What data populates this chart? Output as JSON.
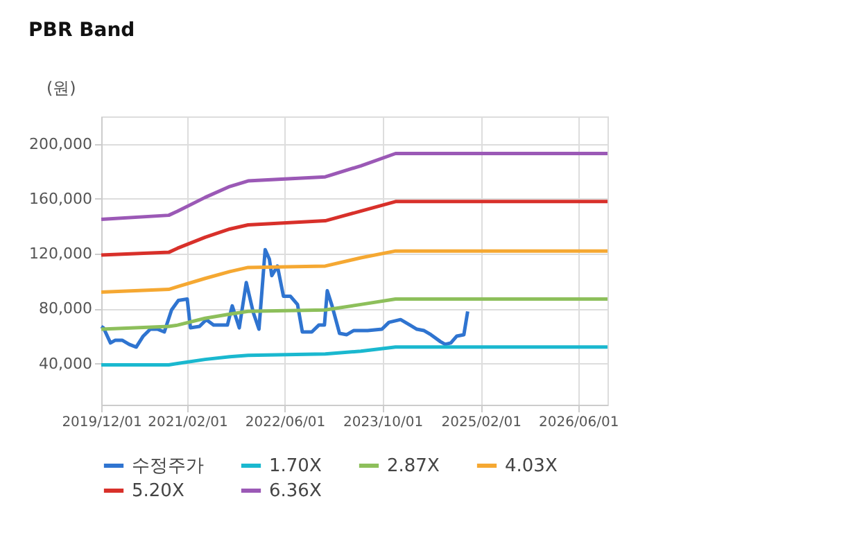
{
  "chart_data": {
    "type": "line",
    "title": "PBR Band",
    "ylabel": "(원)",
    "xlim": [
      "2019-12-01",
      "2026-10-25"
    ],
    "xticks": [
      {
        "value": "2019-12-01",
        "label": "2019/12/01"
      },
      {
        "value": "2021-02-01",
        "label": "2021/02/01"
      },
      {
        "value": "2022-06-01",
        "label": "2022/06/01"
      },
      {
        "value": "2023-10-01",
        "label": "2023/10/01"
      },
      {
        "value": "2025-02-01",
        "label": "2025/02/01"
      },
      {
        "value": "2026-06-01",
        "label": "2026/06/01"
      }
    ],
    "ylim": [
      10000,
      220000
    ],
    "yticks": [
      {
        "value": 40000,
        "label": "40,000"
      },
      {
        "value": 80000,
        "label": "80,000"
      },
      {
        "value": 120000,
        "label": "120,000"
      },
      {
        "value": 160000,
        "label": "160,000"
      },
      {
        "value": 200000,
        "label": "200,000"
      }
    ],
    "grid": true,
    "legend": "bottom",
    "marker": "none",
    "line_style": "solid",
    "series": [
      {
        "name": "수정주가",
        "color": "#2f74d0",
        "x": [
          "2019-12-01",
          "2019-12-12",
          "2020-01-16",
          "2020-02-09",
          "2020-03-14",
          "2020-04-18",
          "2020-05-23",
          "2020-06-27",
          "2020-08-01",
          "2020-09-06",
          "2020-10-10",
          "2020-11-15",
          "2020-12-19",
          "2021-02-01",
          "2021-02-17",
          "2021-04-03",
          "2021-05-07",
          "2021-06-12",
          "2021-07-16",
          "2021-08-20",
          "2021-09-13",
          "2021-10-18",
          "2021-11-22",
          "2021-12-27",
          "2022-01-24",
          "2022-02-24",
          "2022-03-17",
          "2022-03-29",
          "2022-04-26",
          "2022-05-26",
          "2022-06-30",
          "2022-08-04",
          "2022-08-28",
          "2022-10-14",
          "2022-11-18",
          "2022-12-16",
          "2022-12-30",
          "2023-01-23",
          "2023-03-01",
          "2023-04-06",
          "2023-05-10",
          "2023-07-19",
          "2023-09-28",
          "2023-11-02",
          "2023-12-30",
          "2024-02-15",
          "2024-03-20",
          "2024-04-25",
          "2024-05-29",
          "2024-07-15",
          "2024-08-08",
          "2024-09-05",
          "2024-10-05",
          "2024-11-09",
          "2024-11-28"
        ],
        "values": [
          67000,
          66000,
          55000,
          57000,
          57000,
          54000,
          52000,
          60000,
          65000,
          65000,
          63000,
          79000,
          86000,
          87000,
          66000,
          67000,
          72000,
          68000,
          68000,
          68000,
          82000,
          66000,
          99000,
          77000,
          65000,
          123000,
          116000,
          104000,
          111000,
          89000,
          89000,
          83000,
          63000,
          63000,
          68000,
          68000,
          93000,
          82000,
          62000,
          61000,
          64000,
          64000,
          65000,
          70000,
          72000,
          68000,
          65000,
          64000,
          61000,
          56000,
          54000,
          55000,
          60000,
          61000,
          78000
        ]
      },
      {
        "name": "1.70X",
        "color": "#1ab8cf",
        "x": [
          "2019-12-01",
          "2020-11-01",
          "2020-12-15",
          "2021-05-01",
          "2021-09-01",
          "2021-12-01",
          "2022-12-20",
          "2023-06-15",
          "2023-12-05",
          "2026-10-25"
        ],
        "values": [
          39000,
          39000,
          40000,
          43000,
          45000,
          46000,
          47000,
          49000,
          52000,
          52000
        ]
      },
      {
        "name": "2.87X",
        "color": "#8dbf5b",
        "x": [
          "2019-12-01",
          "2020-11-01",
          "2020-12-15",
          "2021-05-01",
          "2021-09-01",
          "2021-12-01",
          "2022-12-20",
          "2023-06-15",
          "2023-12-05",
          "2026-10-25"
        ],
        "values": [
          65000,
          67000,
          68000,
          73000,
          76000,
          78000,
          79000,
          83000,
          87000,
          87000
        ]
      },
      {
        "name": "4.03X",
        "color": "#f5a832",
        "x": [
          "2019-12-01",
          "2020-11-01",
          "2020-12-15",
          "2021-05-01",
          "2021-09-01",
          "2021-12-01",
          "2022-12-20",
          "2023-06-15",
          "2023-12-05",
          "2026-10-25"
        ],
        "values": [
          92000,
          94000,
          96000,
          102000,
          107000,
          110000,
          111000,
          117000,
          122000,
          122000
        ]
      },
      {
        "name": "5.20X",
        "color": "#d8302a",
        "x": [
          "2019-12-01",
          "2020-11-01",
          "2020-12-15",
          "2021-05-01",
          "2021-09-01",
          "2021-12-01",
          "2022-12-20",
          "2023-06-15",
          "2023-12-05",
          "2026-10-25"
        ],
        "values": [
          119000,
          121000,
          124000,
          132000,
          138000,
          141000,
          144000,
          151000,
          158000,
          158000
        ]
      },
      {
        "name": "6.36X",
        "color": "#9b59b6",
        "x": [
          "2019-12-01",
          "2020-11-01",
          "2020-12-15",
          "2021-05-01",
          "2021-09-01",
          "2021-12-01",
          "2022-12-20",
          "2023-06-15",
          "2023-12-05",
          "2026-10-25"
        ],
        "values": [
          145000,
          148000,
          151000,
          161000,
          169000,
          173000,
          176000,
          184000,
          193000,
          193000
        ]
      }
    ]
  }
}
